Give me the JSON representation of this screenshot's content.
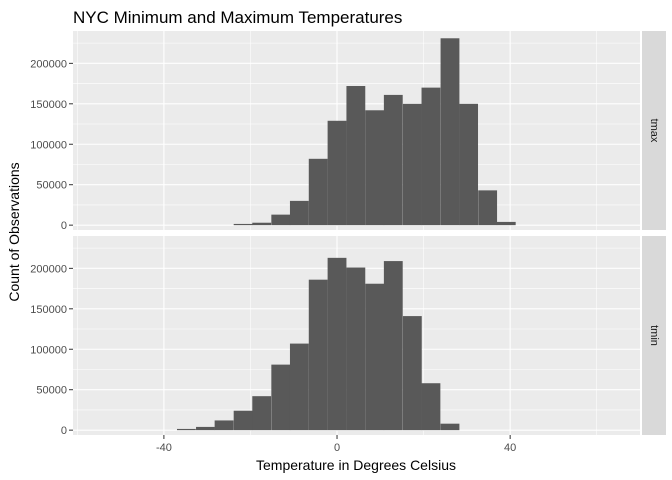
{
  "chart_data": {
    "type": "bar",
    "subtype": "histogram",
    "title": "NYC Minimum and Maximum Temperatures",
    "xlabel": "Temperature in Degrees Celsius",
    "ylabel": "Count of Observations",
    "xlim": [
      -61,
      70
    ],
    "ylim": [
      -6000,
      240000
    ],
    "x_ticks": [
      -40,
      0,
      40
    ],
    "y_ticks": [
      0,
      50000,
      100000,
      150000,
      200000
    ],
    "x_tick_labels": [
      "-40",
      "0",
      "40"
    ],
    "y_tick_labels": [
      "0",
      "50000",
      "100000",
      "150000",
      "200000"
    ],
    "bin_width": 4.35,
    "grid": true,
    "facet_strip_position": "right",
    "colors": {
      "bar": "#595959",
      "panel_background": "#ebebeb",
      "grid": "#ffffff",
      "strip_background": "#d9d9d9"
    },
    "panels": [
      {
        "strip_label": "tmax",
        "bin_centers": [
          -21.7,
          -17.4,
          -13.0,
          -8.7,
          -4.35,
          0.0,
          4.35,
          8.7,
          13.0,
          17.4,
          21.7,
          26.1,
          30.4,
          34.8,
          39.1
        ],
        "values": [
          1500,
          3000,
          13000,
          30000,
          82000,
          129000,
          172000,
          142000,
          161000,
          150000,
          170000,
          231000,
          150000,
          43000,
          4000
        ]
      },
      {
        "strip_label": "tmin",
        "bin_centers": [
          -34.8,
          -30.4,
          -26.1,
          -21.7,
          -17.4,
          -13.0,
          -8.7,
          -4.35,
          0.0,
          4.35,
          8.7,
          13.0,
          17.4,
          21.7,
          26.1
        ],
        "values": [
          1500,
          4000,
          12000,
          24000,
          42000,
          81000,
          107000,
          186000,
          213000,
          201000,
          181000,
          209000,
          141000,
          58000,
          8000
        ]
      }
    ]
  }
}
